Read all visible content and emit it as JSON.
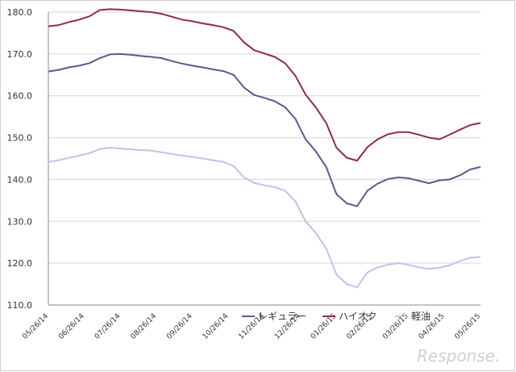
{
  "chart_data": {
    "type": "line",
    "ylim": [
      110,
      180
    ],
    "yticks": [
      "110.0",
      "120.0",
      "130.0",
      "140.0",
      "150.0",
      "160.0",
      "170.0",
      "180.0"
    ],
    "grid": "horizontal",
    "legend_position": "bottom-inside",
    "x_tick_labels": [
      "05/26/14",
      "06/26/14",
      "07/26/14",
      "08/26/14",
      "09/26/14",
      "10/26/14",
      "11/26/14",
      "12/26/14",
      "01/26/15",
      "02/26/15",
      "03/26/15",
      "04/26/15",
      "05/26/15"
    ],
    "series": [
      {
        "name": "レギュラー",
        "color": "#5a5a8e",
        "values": [
          165.8,
          166.2,
          166.8,
          167.2,
          167.8,
          169.0,
          169.9,
          170.0,
          169.8,
          169.5,
          169.3,
          169.0,
          168.3,
          167.7,
          167.2,
          166.8,
          166.3,
          165.9,
          165.0,
          162.0,
          160.2,
          159.5,
          158.7,
          157.3,
          154.5,
          149.6,
          146.7,
          143.0,
          136.5,
          134.3,
          133.6,
          137.3,
          139.0,
          140.1,
          140.5,
          140.3,
          139.7,
          139.1,
          139.8,
          140.0,
          141.0,
          142.4,
          143.0
        ]
      },
      {
        "name": "ハイオク",
        "color": "#8b2a5a",
        "values": [
          176.6,
          176.9,
          177.6,
          178.2,
          179.0,
          180.5,
          180.7,
          180.6,
          180.4,
          180.2,
          180.0,
          179.6,
          178.9,
          178.2,
          177.8,
          177.3,
          176.9,
          176.4,
          175.5,
          172.8,
          170.9,
          170.1,
          169.3,
          167.8,
          164.8,
          160.3,
          157.2,
          153.5,
          147.6,
          145.2,
          144.5,
          147.7,
          149.6,
          150.8,
          151.3,
          151.3,
          150.7,
          150.0,
          149.6,
          150.7,
          151.9,
          153.0,
          153.5
        ]
      },
      {
        "name": "軽油",
        "color": "#c2c2e6",
        "values": [
          144.2,
          144.6,
          145.2,
          145.7,
          146.3,
          147.3,
          147.6,
          147.4,
          147.2,
          147.0,
          146.9,
          146.5,
          146.1,
          145.7,
          145.4,
          145.0,
          144.6,
          144.2,
          143.2,
          140.5,
          139.2,
          138.6,
          138.2,
          137.3,
          134.8,
          130.0,
          127.2,
          123.5,
          117.3,
          115.0,
          114.2,
          117.8,
          119.0,
          119.6,
          120.0,
          119.6,
          119.0,
          118.6,
          118.9,
          119.5,
          120.5,
          121.3,
          121.5
        ]
      }
    ]
  },
  "watermark": "Response."
}
